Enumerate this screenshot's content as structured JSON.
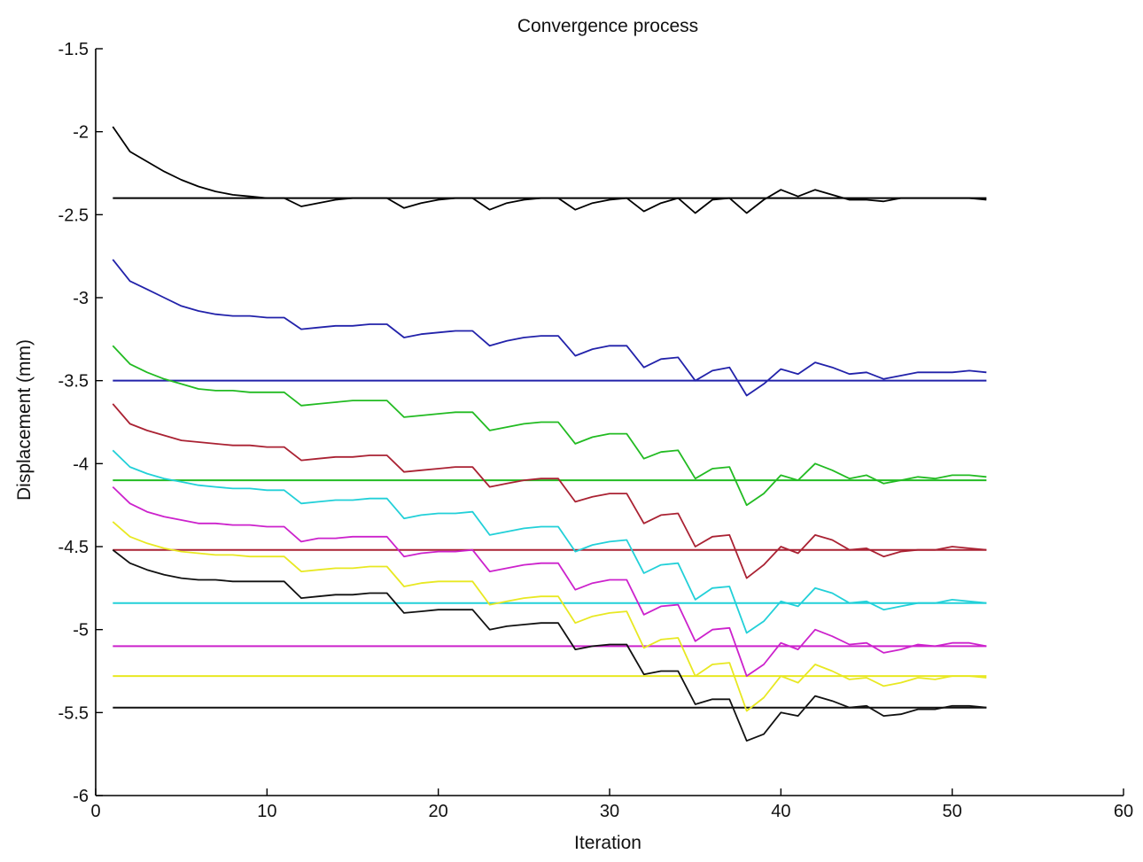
{
  "chart_data": {
    "type": "line",
    "title": "Convergence process",
    "xlabel": "Iteration",
    "ylabel": "Displacement (mm)",
    "xlim": [
      0,
      60
    ],
    "ylim": [
      -6,
      -1.5
    ],
    "xticks": [
      0,
      10,
      20,
      30,
      40,
      50,
      60
    ],
    "yticks": [
      -1.5,
      -2,
      -2.5,
      -3,
      -3.5,
      -4,
      -4.5,
      -5,
      -5.5,
      -6
    ],
    "xtick_labels": [
      "0",
      "10",
      "20",
      "30",
      "40",
      "50",
      "60"
    ],
    "ytick_labels": [
      "-1.5",
      "-2",
      "-2.5",
      "-3",
      "-3.5",
      "-4",
      "-4.5",
      "-5",
      "-5.5",
      "-6"
    ],
    "grid": false,
    "references": [
      {
        "color": "#000000",
        "y": -2.4
      },
      {
        "color": "#2222aa",
        "y": -3.5
      },
      {
        "color": "#22bb22",
        "y": -4.1
      },
      {
        "color": "#aa2233",
        "y": -4.52
      },
      {
        "color": "#22d0d8",
        "y": -4.84
      },
      {
        "color": "#cc22cc",
        "y": -5.1
      },
      {
        "color": "#e8e822",
        "y": -5.28
      },
      {
        "color": "#111111",
        "y": -5.47
      }
    ],
    "series": [
      {
        "color": "#000000",
        "values": [
          -1.97,
          -2.12,
          -2.18,
          -2.24,
          -2.29,
          -2.33,
          -2.36,
          -2.38,
          -2.39,
          -2.4,
          -2.4,
          -2.45,
          -2.43,
          -2.41,
          -2.4,
          -2.4,
          -2.4,
          -2.46,
          -2.43,
          -2.41,
          -2.4,
          -2.4,
          -2.47,
          -2.43,
          -2.41,
          -2.4,
          -2.4,
          -2.47,
          -2.43,
          -2.41,
          -2.4,
          -2.48,
          -2.43,
          -2.4,
          -2.49,
          -2.41,
          -2.4,
          -2.49,
          -2.41,
          -2.35,
          -2.39,
          -2.35,
          -2.38,
          -2.41,
          -2.41,
          -2.42,
          -2.4,
          -2.4,
          -2.4,
          -2.4,
          -2.4,
          -2.41
        ]
      },
      {
        "color": "#2222aa",
        "values": [
          -2.77,
          -2.9,
          -2.95,
          -3.0,
          -3.05,
          -3.08,
          -3.1,
          -3.11,
          -3.11,
          -3.12,
          -3.12,
          -3.19,
          -3.18,
          -3.17,
          -3.17,
          -3.16,
          -3.16,
          -3.24,
          -3.22,
          -3.21,
          -3.2,
          -3.2,
          -3.29,
          -3.26,
          -3.24,
          -3.23,
          -3.23,
          -3.35,
          -3.31,
          -3.29,
          -3.29,
          -3.42,
          -3.37,
          -3.36,
          -3.5,
          -3.44,
          -3.42,
          -3.59,
          -3.52,
          -3.43,
          -3.46,
          -3.39,
          -3.42,
          -3.46,
          -3.45,
          -3.49,
          -3.47,
          -3.45,
          -3.45,
          -3.45,
          -3.44,
          -3.45
        ]
      },
      {
        "color": "#22bb22",
        "values": [
          -3.29,
          -3.4,
          -3.45,
          -3.49,
          -3.52,
          -3.55,
          -3.56,
          -3.56,
          -3.57,
          -3.57,
          -3.57,
          -3.65,
          -3.64,
          -3.63,
          -3.62,
          -3.62,
          -3.62,
          -3.72,
          -3.71,
          -3.7,
          -3.69,
          -3.69,
          -3.8,
          -3.78,
          -3.76,
          -3.75,
          -3.75,
          -3.88,
          -3.84,
          -3.82,
          -3.82,
          -3.97,
          -3.93,
          -3.92,
          -4.09,
          -4.03,
          -4.02,
          -4.25,
          -4.18,
          -4.07,
          -4.1,
          -4.0,
          -4.04,
          -4.09,
          -4.07,
          -4.12,
          -4.1,
          -4.08,
          -4.09,
          -4.07,
          -4.07,
          -4.08
        ]
      },
      {
        "color": "#aa2233",
        "values": [
          -3.64,
          -3.76,
          -3.8,
          -3.83,
          -3.86,
          -3.87,
          -3.88,
          -3.89,
          -3.89,
          -3.9,
          -3.9,
          -3.98,
          -3.97,
          -3.96,
          -3.96,
          -3.95,
          -3.95,
          -4.05,
          -4.04,
          -4.03,
          -4.02,
          -4.02,
          -4.14,
          -4.12,
          -4.1,
          -4.09,
          -4.09,
          -4.23,
          -4.2,
          -4.18,
          -4.18,
          -4.36,
          -4.31,
          -4.3,
          -4.5,
          -4.44,
          -4.43,
          -4.69,
          -4.61,
          -4.5,
          -4.54,
          -4.43,
          -4.46,
          -4.52,
          -4.51,
          -4.56,
          -4.53,
          -4.52,
          -4.52,
          -4.5,
          -4.51,
          -4.52
        ]
      },
      {
        "color": "#22d0d8",
        "values": [
          -3.92,
          -4.02,
          -4.06,
          -4.09,
          -4.11,
          -4.13,
          -4.14,
          -4.15,
          -4.15,
          -4.16,
          -4.16,
          -4.24,
          -4.23,
          -4.22,
          -4.22,
          -4.21,
          -4.21,
          -4.33,
          -4.31,
          -4.3,
          -4.3,
          -4.29,
          -4.43,
          -4.41,
          -4.39,
          -4.38,
          -4.38,
          -4.53,
          -4.49,
          -4.47,
          -4.46,
          -4.66,
          -4.61,
          -4.6,
          -4.82,
          -4.75,
          -4.74,
          -5.02,
          -4.95,
          -4.83,
          -4.86,
          -4.75,
          -4.78,
          -4.84,
          -4.83,
          -4.88,
          -4.86,
          -4.84,
          -4.84,
          -4.82,
          -4.83,
          -4.84
        ]
      },
      {
        "color": "#cc22cc",
        "values": [
          -4.14,
          -4.24,
          -4.29,
          -4.32,
          -4.34,
          -4.36,
          -4.36,
          -4.37,
          -4.37,
          -4.38,
          -4.38,
          -4.47,
          -4.45,
          -4.45,
          -4.44,
          -4.44,
          -4.44,
          -4.56,
          -4.54,
          -4.53,
          -4.53,
          -4.52,
          -4.65,
          -4.63,
          -4.61,
          -4.6,
          -4.6,
          -4.76,
          -4.72,
          -4.7,
          -4.7,
          -4.91,
          -4.86,
          -4.85,
          -5.07,
          -5.0,
          -4.99,
          -5.28,
          -5.21,
          -5.08,
          -5.12,
          -5.0,
          -5.04,
          -5.09,
          -5.08,
          -5.14,
          -5.12,
          -5.09,
          -5.1,
          -5.08,
          -5.08,
          -5.1
        ]
      },
      {
        "color": "#e8e822",
        "values": [
          -4.35,
          -4.44,
          -4.48,
          -4.51,
          -4.53,
          -4.54,
          -4.55,
          -4.55,
          -4.56,
          -4.56,
          -4.56,
          -4.65,
          -4.64,
          -4.63,
          -4.63,
          -4.62,
          -4.62,
          -4.74,
          -4.72,
          -4.71,
          -4.71,
          -4.71,
          -4.85,
          -4.83,
          -4.81,
          -4.8,
          -4.8,
          -4.96,
          -4.92,
          -4.9,
          -4.89,
          -5.11,
          -5.06,
          -5.05,
          -5.28,
          -5.21,
          -5.2,
          -5.49,
          -5.41,
          -5.28,
          -5.32,
          -5.21,
          -5.25,
          -5.3,
          -5.29,
          -5.34,
          -5.32,
          -5.29,
          -5.3,
          -5.28,
          -5.28,
          -5.29
        ]
      },
      {
        "color": "#111111",
        "values": [
          -4.52,
          -4.6,
          -4.64,
          -4.67,
          -4.69,
          -4.7,
          -4.7,
          -4.71,
          -4.71,
          -4.71,
          -4.71,
          -4.81,
          -4.8,
          -4.79,
          -4.79,
          -4.78,
          -4.78,
          -4.9,
          -4.89,
          -4.88,
          -4.88,
          -4.88,
          -5.0,
          -4.98,
          -4.97,
          -4.96,
          -4.96,
          -5.12,
          -5.1,
          -5.09,
          -5.09,
          -5.27,
          -5.25,
          -5.25,
          -5.45,
          -5.42,
          -5.42,
          -5.67,
          -5.63,
          -5.5,
          -5.52,
          -5.4,
          -5.43,
          -5.47,
          -5.46,
          -5.52,
          -5.51,
          -5.48,
          -5.48,
          -5.46,
          -5.46,
          -5.47
        ]
      }
    ]
  }
}
